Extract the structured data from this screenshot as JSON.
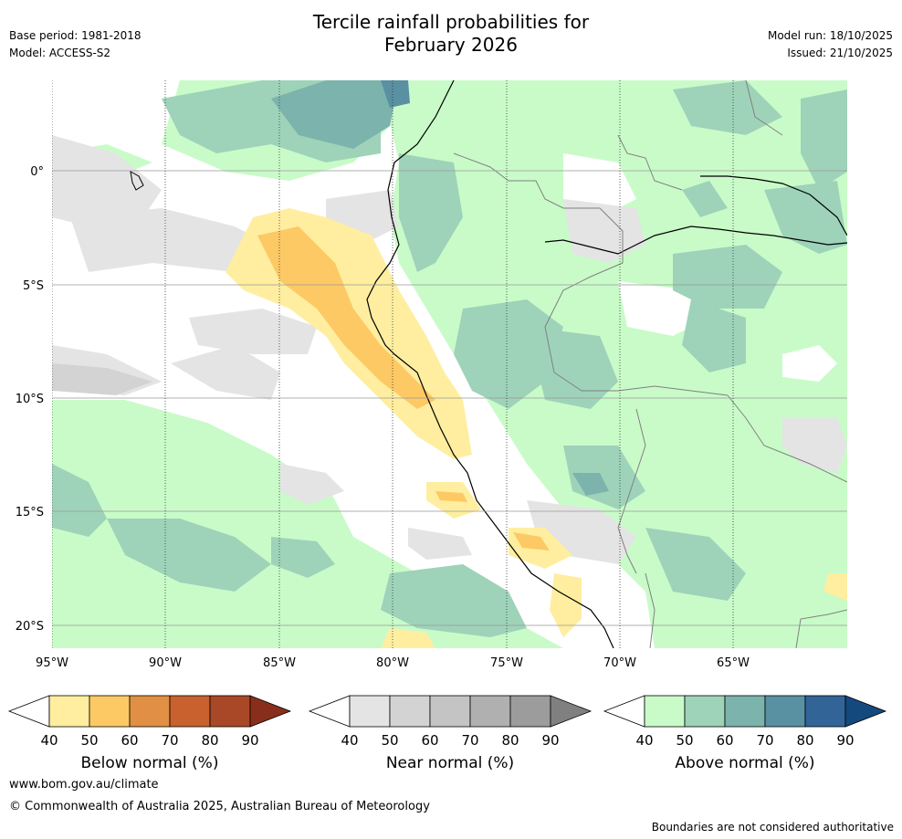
{
  "header": {
    "title_line1": "Tercile rainfall probabilities for",
    "title_line2": "February 2026",
    "base_period": "Base period: 1981-2018",
    "model": "Model: ACCESS-S2",
    "model_run": "Model run: 18/10/2025",
    "issued": "Issued: 21/10/2025"
  },
  "map": {
    "lon_range": [
      -95,
      -61
    ],
    "lat_range": [
      -21,
      4
    ],
    "lon_ticks": [
      "95°W",
      "90°W",
      "85°W",
      "80°W",
      "75°W",
      "70°W",
      "65°W"
    ],
    "lat_ticks": [
      "0°",
      "5°S",
      "10°S",
      "15°S",
      "20°S"
    ],
    "colors": {
      "below": [
        "#ffeea0",
        "#fdc964",
        "#e08f44",
        "#c8612e",
        "#a94827",
        "#8a2e1c"
      ],
      "near": [
        "#e4e4e4",
        "#d3d3d3",
        "#c4c4c4",
        "#b0b0b0",
        "#9c9c9c",
        "#808080"
      ],
      "above": [
        "#c9fbc9",
        "#9ed3b9",
        "#7cb3ac",
        "#5990a2",
        "#326497",
        "#14497e"
      ]
    }
  },
  "colorbars": [
    {
      "label": "Below normal (%)",
      "ticks": [
        "40",
        "50",
        "60",
        "70",
        "80",
        "90"
      ]
    },
    {
      "label": "Near normal (%)",
      "ticks": [
        "40",
        "50",
        "60",
        "70",
        "80",
        "90"
      ]
    },
    {
      "label": "Above normal (%)",
      "ticks": [
        "40",
        "50",
        "60",
        "70",
        "80",
        "90"
      ]
    }
  ],
  "footer": {
    "url": "www.bom.gov.au/climate",
    "copyright": "© Commonwealth of Australia 2025, Australian Bureau of Meteorology",
    "note": "Boundaries are not considered authoritative"
  }
}
